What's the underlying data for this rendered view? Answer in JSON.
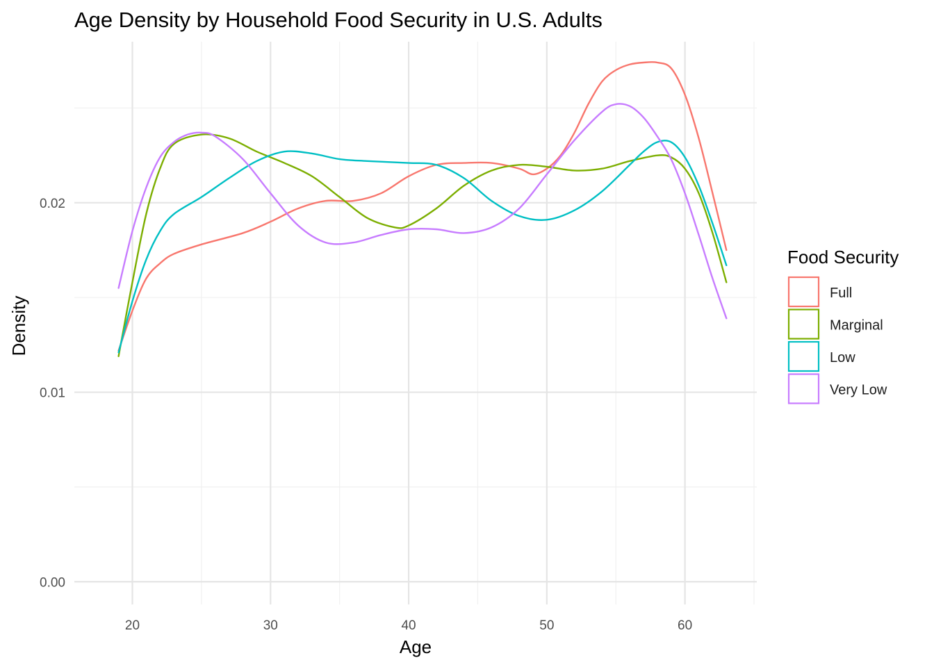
{
  "chart_data": {
    "type": "line",
    "title": "Age Density by Household Food Security in U.S. Adults",
    "xlabel": "Age",
    "ylabel": "Density",
    "xlim": [
      15.8,
      65.2
    ],
    "ylim": [
      -0.0012,
      0.0285
    ],
    "x_ticks": [
      20,
      30,
      40,
      50,
      60
    ],
    "x_tick_labels": [
      "20",
      "30",
      "40",
      "50",
      "60"
    ],
    "x_minor_ticks": [
      25,
      35,
      45,
      55,
      65
    ],
    "y_ticks": [
      0.0,
      0.01,
      0.02
    ],
    "y_tick_labels": [
      "0.00",
      "0.01",
      "0.02"
    ],
    "y_minor_ticks": [
      0.005,
      0.015,
      0.025
    ],
    "grid": true,
    "legend": {
      "title": "Food Security",
      "placement": "right"
    },
    "series": [
      {
        "name": "Full",
        "color": "#F8766D",
        "points": [
          [
            19,
            0.0122
          ],
          [
            20,
            0.0143
          ],
          [
            21,
            0.016
          ],
          [
            22,
            0.0168
          ],
          [
            23,
            0.0173
          ],
          [
            25,
            0.0178
          ],
          [
            28,
            0.0184
          ],
          [
            30,
            0.019
          ],
          [
            32,
            0.0197
          ],
          [
            34,
            0.0201
          ],
          [
            36,
            0.0201
          ],
          [
            38,
            0.0205
          ],
          [
            40,
            0.0214
          ],
          [
            42,
            0.022
          ],
          [
            44,
            0.0221
          ],
          [
            46,
            0.0221
          ],
          [
            48,
            0.0218
          ],
          [
            49,
            0.0215
          ],
          [
            50,
            0.0218
          ],
          [
            51,
            0.0225
          ],
          [
            52,
            0.0237
          ],
          [
            53,
            0.0252
          ],
          [
            54,
            0.0264
          ],
          [
            55,
            0.027
          ],
          [
            56,
            0.0273
          ],
          [
            57,
            0.0274
          ],
          [
            58,
            0.0274
          ],
          [
            59,
            0.0271
          ],
          [
            60,
            0.0257
          ],
          [
            61,
            0.0234
          ],
          [
            62,
            0.0205
          ],
          [
            63,
            0.0175
          ]
        ]
      },
      {
        "name": "Marginal",
        "color": "#7CAE00",
        "points": [
          [
            19,
            0.0119
          ],
          [
            20,
            0.0158
          ],
          [
            21,
            0.0194
          ],
          [
            22,
            0.0218
          ],
          [
            23,
            0.0231
          ],
          [
            25,
            0.0236
          ],
          [
            27,
            0.0234
          ],
          [
            29,
            0.0227
          ],
          [
            31,
            0.0221
          ],
          [
            33,
            0.0214
          ],
          [
            35,
            0.0203
          ],
          [
            37,
            0.0192
          ],
          [
            39,
            0.0187
          ],
          [
            40,
            0.0188
          ],
          [
            42,
            0.0197
          ],
          [
            44,
            0.0209
          ],
          [
            46,
            0.0217
          ],
          [
            48,
            0.022
          ],
          [
            50,
            0.0219
          ],
          [
            52,
            0.0217
          ],
          [
            54,
            0.0218
          ],
          [
            56,
            0.0222
          ],
          [
            58,
            0.0225
          ],
          [
            59,
            0.0224
          ],
          [
            60,
            0.0218
          ],
          [
            61,
            0.0205
          ],
          [
            62,
            0.0184
          ],
          [
            63,
            0.0158
          ]
        ]
      },
      {
        "name": "Low",
        "color": "#00BFC4",
        "points": [
          [
            19,
            0.0121
          ],
          [
            20,
            0.0148
          ],
          [
            21,
            0.017
          ],
          [
            22,
            0.0185
          ],
          [
            23,
            0.0194
          ],
          [
            25,
            0.0203
          ],
          [
            27,
            0.0213
          ],
          [
            29,
            0.0222
          ],
          [
            31,
            0.0227
          ],
          [
            33,
            0.0226
          ],
          [
            35,
            0.0223
          ],
          [
            37,
            0.0222
          ],
          [
            40,
            0.0221
          ],
          [
            42,
            0.022
          ],
          [
            44,
            0.0213
          ],
          [
            46,
            0.0201
          ],
          [
            48,
            0.0193
          ],
          [
            50,
            0.0191
          ],
          [
            52,
            0.0196
          ],
          [
            54,
            0.0206
          ],
          [
            56,
            0.022
          ],
          [
            57,
            0.0227
          ],
          [
            58,
            0.0232
          ],
          [
            59,
            0.0232
          ],
          [
            60,
            0.0224
          ],
          [
            61,
            0.0209
          ],
          [
            62,
            0.0189
          ],
          [
            63,
            0.0167
          ]
        ]
      },
      {
        "name": "Very Low",
        "color": "#C77CFF",
        "points": [
          [
            19,
            0.0155
          ],
          [
            20,
            0.0185
          ],
          [
            21,
            0.0208
          ],
          [
            22,
            0.0224
          ],
          [
            23,
            0.0232
          ],
          [
            24,
            0.0236
          ],
          [
            25,
            0.0237
          ],
          [
            26,
            0.0235
          ],
          [
            28,
            0.0223
          ],
          [
            30,
            0.0205
          ],
          [
            32,
            0.0188
          ],
          [
            34,
            0.0179
          ],
          [
            36,
            0.0179
          ],
          [
            38,
            0.0183
          ],
          [
            40,
            0.0186
          ],
          [
            42,
            0.0186
          ],
          [
            44,
            0.0184
          ],
          [
            46,
            0.0187
          ],
          [
            48,
            0.0197
          ],
          [
            50,
            0.0215
          ],
          [
            52,
            0.0233
          ],
          [
            54,
            0.0248
          ],
          [
            55,
            0.0252
          ],
          [
            56,
            0.0251
          ],
          [
            57,
            0.0245
          ],
          [
            58,
            0.0235
          ],
          [
            59,
            0.0223
          ],
          [
            60,
            0.0205
          ],
          [
            61,
            0.0183
          ],
          [
            62,
            0.016
          ],
          [
            63,
            0.0139
          ]
        ]
      }
    ]
  }
}
